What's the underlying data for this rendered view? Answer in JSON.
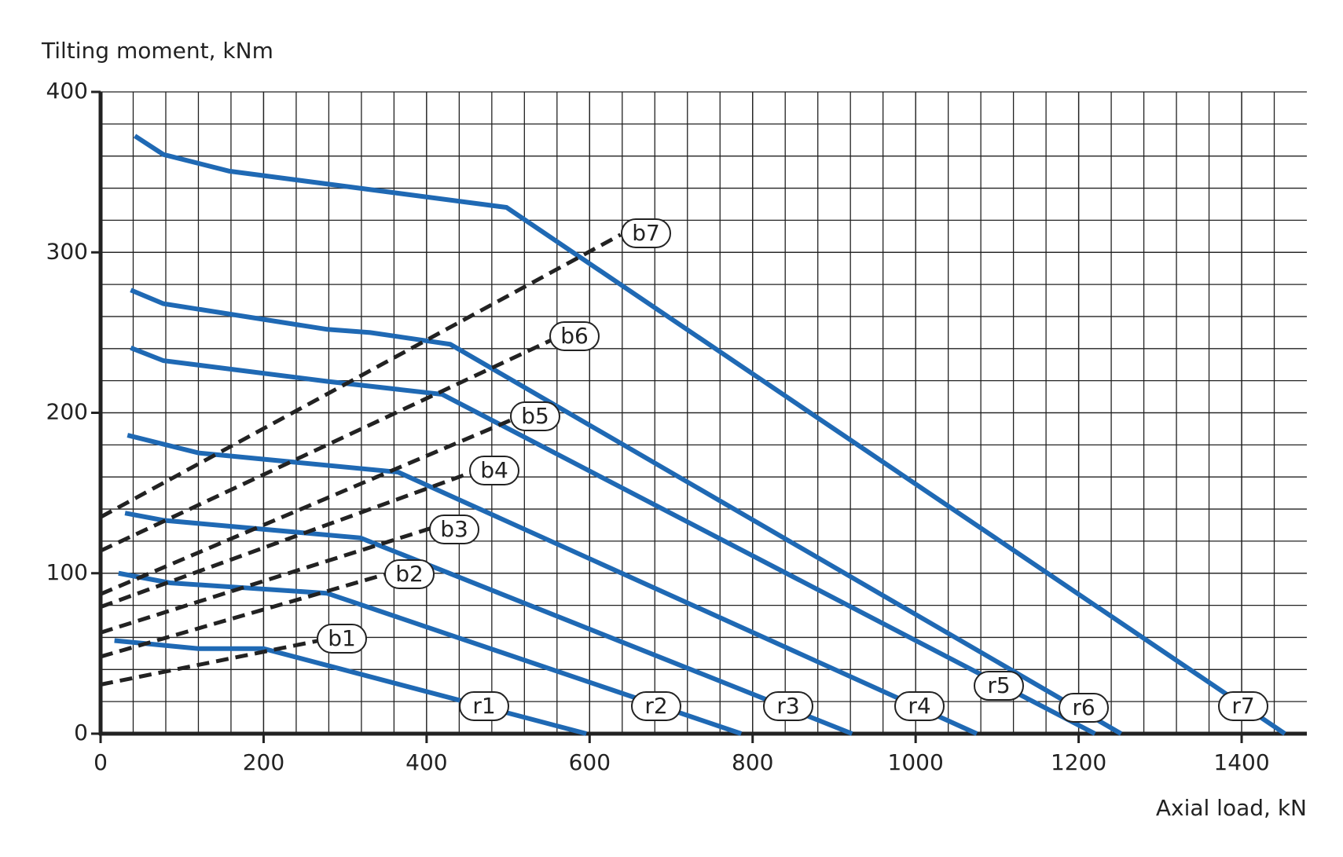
{
  "chart_data": {
    "type": "line",
    "y_label": "Tilting moment, kNm",
    "x_label": "Axial load, kN",
    "xlim": [
      0,
      1480
    ],
    "ylim": [
      0,
      400
    ],
    "xticks": [
      0,
      200,
      400,
      600,
      800,
      1000,
      1200,
      1400
    ],
    "yticks": [
      0,
      100,
      200,
      300,
      400
    ],
    "grid": true,
    "series": [
      {
        "name": "r1",
        "color": "#1f69b4",
        "linestyle": "solid",
        "x": [
          17,
          120,
          200,
          596
        ],
        "values": [
          58,
          53,
          53,
          0
        ]
      },
      {
        "name": "r2",
        "color": "#1f69b4",
        "linestyle": "solid",
        "x": [
          22,
          85,
          278,
          786
        ],
        "values": [
          100,
          94,
          87.5,
          0
        ]
      },
      {
        "name": "r3",
        "color": "#1f69b4",
        "linestyle": "solid",
        "x": [
          30,
          77,
          319,
          922
        ],
        "values": [
          137.5,
          133,
          122,
          0
        ]
      },
      {
        "name": "r4",
        "color": "#1f69b4",
        "linestyle": "solid",
        "x": [
          33,
          120,
          365,
          1075
        ],
        "values": [
          186,
          175,
          163,
          0
        ]
      },
      {
        "name": "r5",
        "color": "#1f69b4",
        "linestyle": "solid",
        "x": [
          37,
          77,
          278,
          419,
          1220
        ],
        "values": [
          240.5,
          232.5,
          219.6,
          211.5,
          0
        ]
      },
      {
        "name": "r6",
        "color": "#1f69b4",
        "linestyle": "solid",
        "x": [
          37,
          77,
          278,
          331,
          429,
          1252
        ],
        "values": [
          276.5,
          268,
          252,
          250,
          242.7,
          0
        ]
      },
      {
        "name": "r7",
        "color": "#1f69b4",
        "linestyle": "solid",
        "x": [
          42,
          77,
          158,
          498,
          1453
        ],
        "values": [
          372.6,
          361,
          350.6,
          328,
          0
        ]
      },
      {
        "name": "b1",
        "color": "#222222",
        "linestyle": "dashed",
        "x": [
          0,
          268
        ],
        "values": [
          30.6,
          58
        ]
      },
      {
        "name": "b2",
        "color": "#222222",
        "linestyle": "dashed",
        "x": [
          0,
          354
        ],
        "values": [
          48,
          100
        ]
      },
      {
        "name": "b3",
        "color": "#222222",
        "linestyle": "dashed",
        "x": [
          0,
          405
        ],
        "values": [
          63,
          128
        ]
      },
      {
        "name": "b4",
        "color": "#222222",
        "linestyle": "dashed",
        "x": [
          0,
          456
        ],
        "values": [
          79,
          163
        ]
      },
      {
        "name": "b5",
        "color": "#222222",
        "linestyle": "dashed",
        "x": [
          0,
          506
        ],
        "values": [
          87,
          196
        ]
      },
      {
        "name": "b6",
        "color": "#222222",
        "linestyle": "dashed",
        "x": [
          0,
          556
        ],
        "values": [
          114,
          246
        ]
      },
      {
        "name": "b7",
        "color": "#222222",
        "linestyle": "dashed",
        "x": [
          0,
          638
        ],
        "values": [
          135,
          311
        ]
      }
    ]
  }
}
